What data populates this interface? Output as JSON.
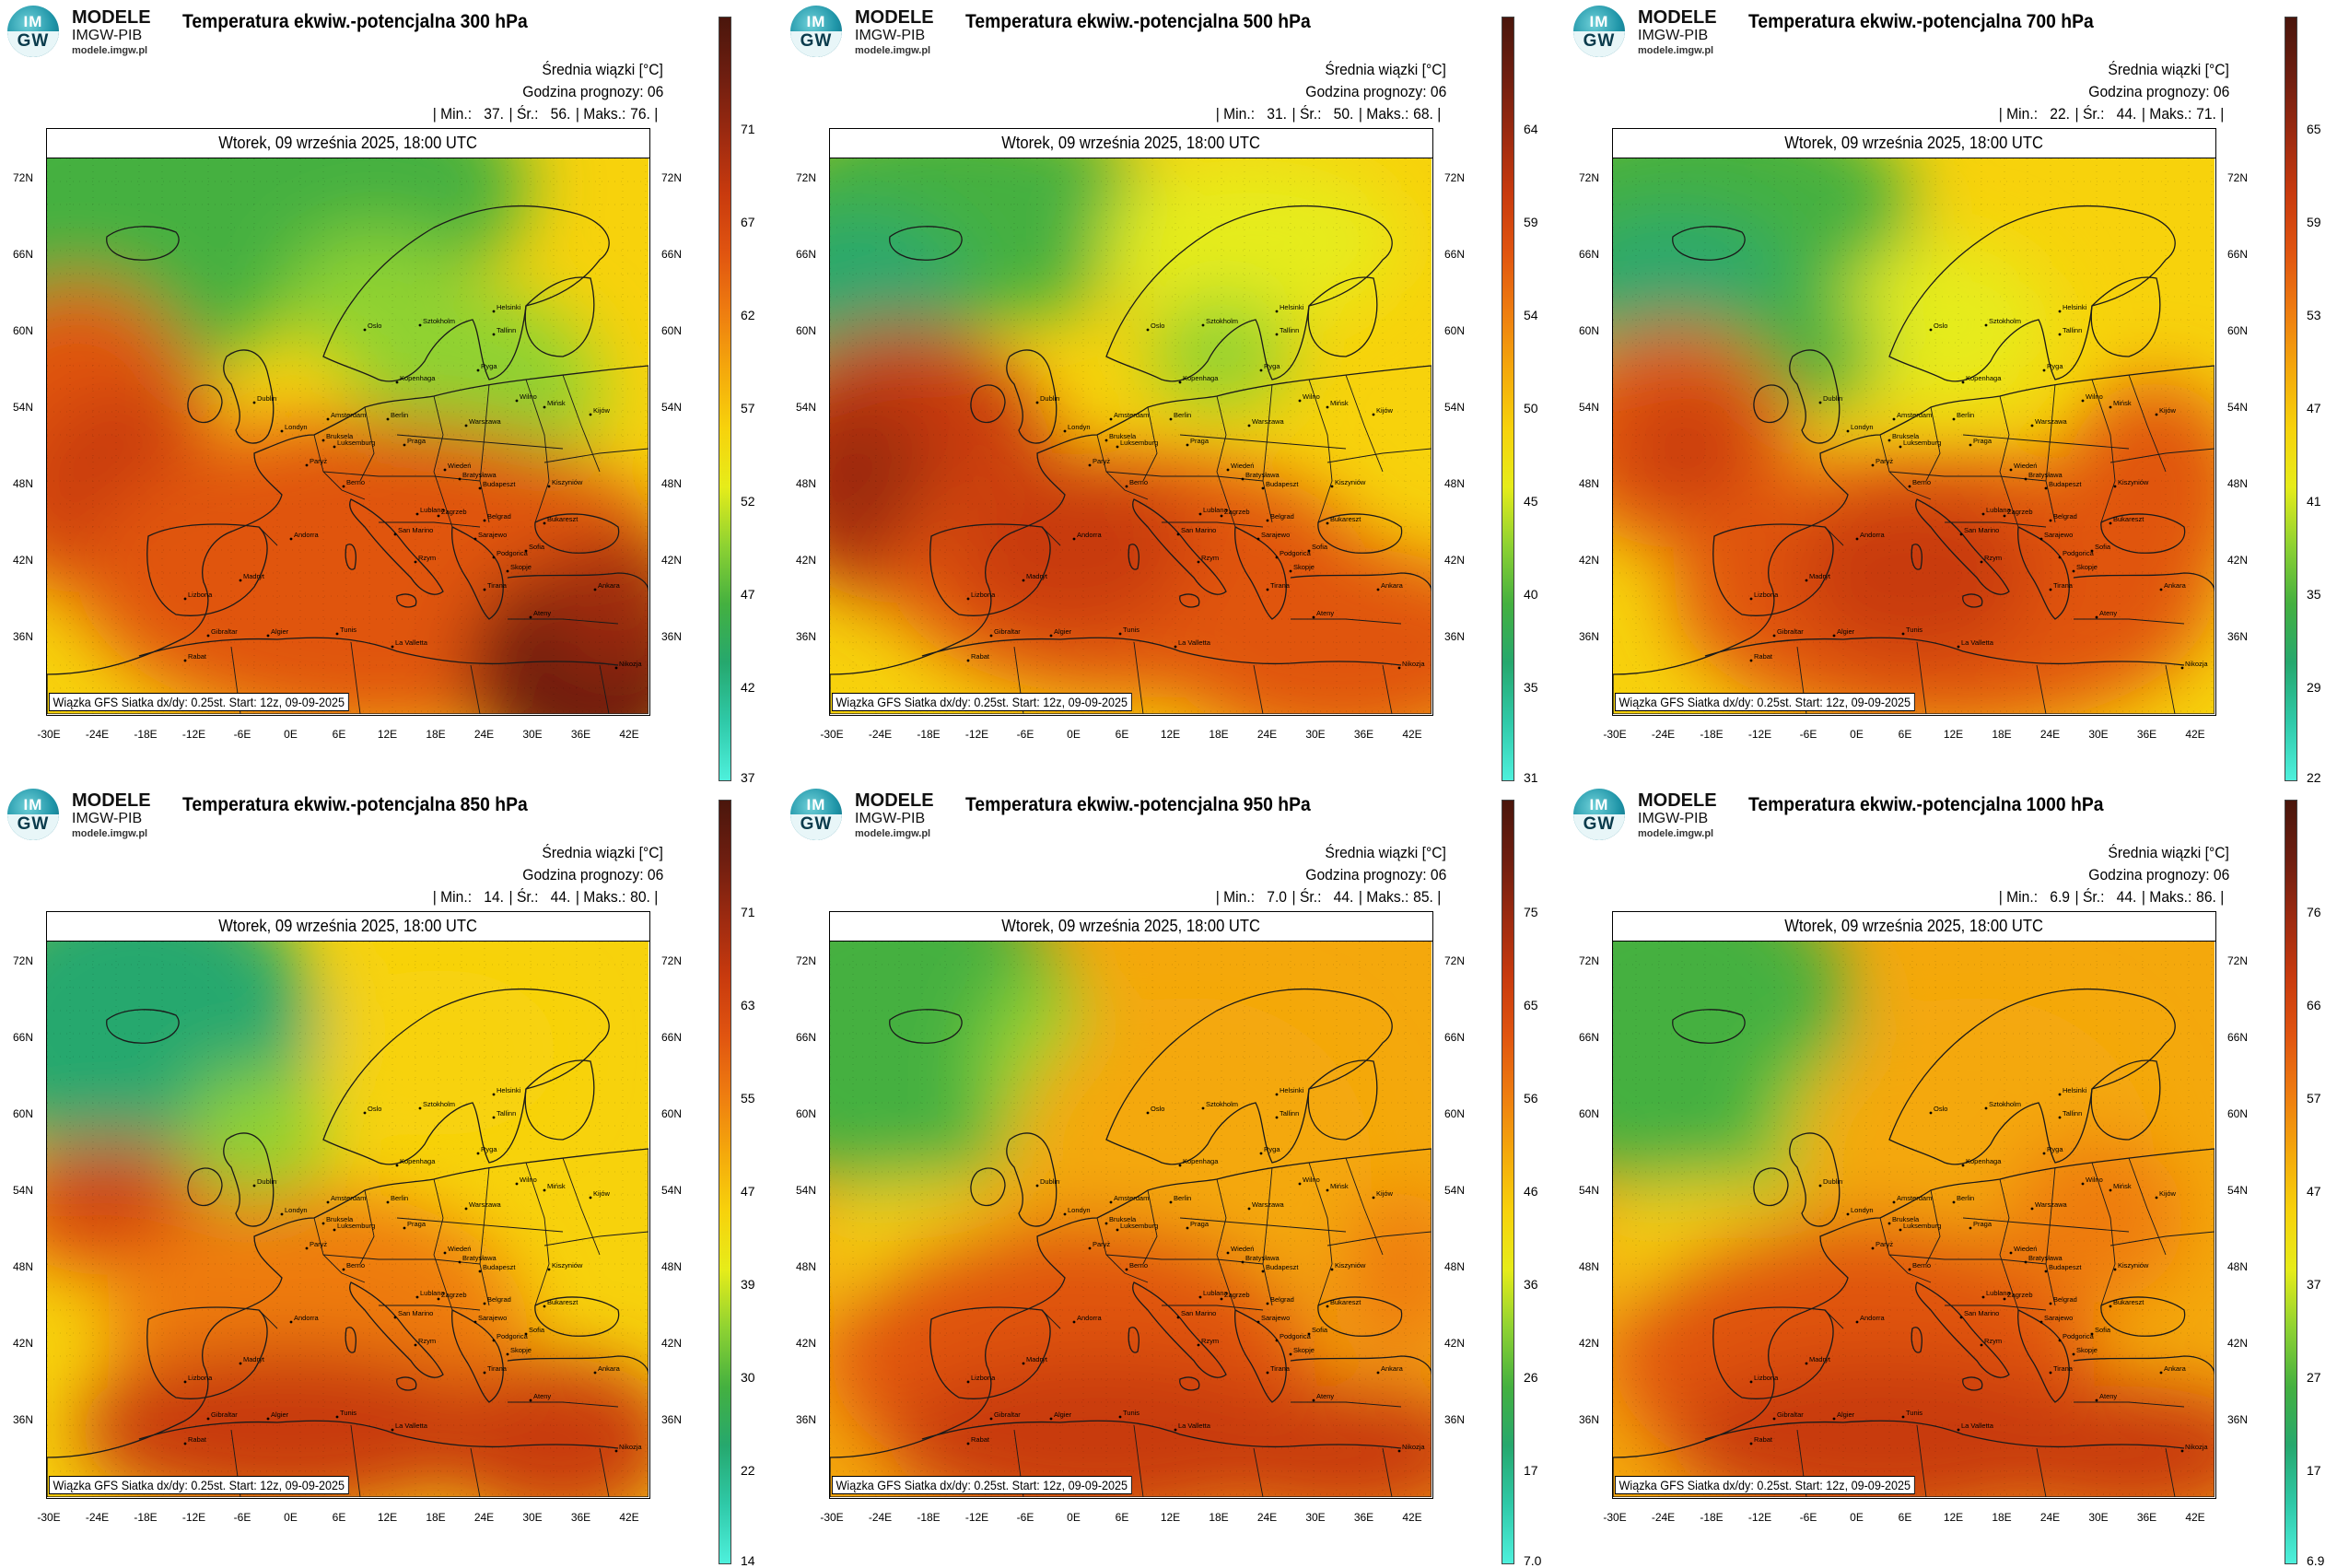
{
  "logo": {
    "top": "MODELE",
    "org": "IMGW-PIB",
    "url": "modele.imgw.pl",
    "badge_top": "IM",
    "badge_bottom": "GW",
    "colors": [
      "#1f95a8",
      "#0d5e74"
    ]
  },
  "common": {
    "subtitle": "Średnia wiązki [°C]",
    "forecast_hour": "Godzina prognozy: 06",
    "date": "Wtorek, 09 września 2025, 18:00 UTC",
    "caption": "Wiązka GFS Siatka dx/dy: 0.25st. Start: 12z, 09-09-2025",
    "min_label": "| Min.:",
    "mean_label": "| Śr.:",
    "max_label": "| Maks.:",
    "lat_labels": [
      "72N",
      "66N",
      "60N",
      "54N",
      "48N",
      "42N",
      "36N"
    ],
    "lon_labels": [
      "-30E",
      "-24E",
      "-18E",
      "-12E",
      "-6E",
      "0E",
      "6E",
      "12E",
      "18E",
      "24E",
      "30E",
      "36E",
      "42E"
    ],
    "cities": [
      "Oslo",
      "Sztokholm",
      "Helsinki",
      "Tallinn",
      "Ryga",
      "Kopenhaga",
      "Wilno",
      "Mińsk",
      "Dublin",
      "Londyn",
      "Amsterdam",
      "Berlin",
      "Warszawa",
      "Kijów",
      "Bruksela",
      "Luksemburg",
      "Paryż",
      "Praga",
      "Wiedeń",
      "Bratysława",
      "Budapeszt",
      "Berno",
      "Kiszyniów",
      "Lublana",
      "Zagrzeb",
      "Bukareszt",
      "Belgrad",
      "Sarajewo",
      "San Marino",
      "Podgorica",
      "Sofia",
      "Andorra",
      "Rzym",
      "Skopje",
      "Tirana",
      "Madryt",
      "Lizbona",
      "Ankara",
      "Ateny",
      "Gibraltar",
      "Algier",
      "Tunis",
      "La Valletta",
      "Rabat",
      "Nikozja"
    ]
  },
  "panels": [
    {
      "title": "Temperatura ekwiw.-potencjalna 300 hPa",
      "min": "37.",
      "mean": "56.",
      "max": "76.",
      "colorbar": [
        "71",
        "67",
        "62",
        "57",
        "52",
        "47",
        "42",
        "37"
      ]
    },
    {
      "title": "Temperatura ekwiw.-potencjalna 500 hPa",
      "min": "31.",
      "mean": "50.",
      "max": "68.",
      "colorbar": [
        "64",
        "59",
        "54",
        "50",
        "45",
        "40",
        "35",
        "31"
      ]
    },
    {
      "title": "Temperatura ekwiw.-potencjalna 700 hPa",
      "min": "22.",
      "mean": "44.",
      "max": "71.",
      "colorbar": [
        "65",
        "59",
        "53",
        "47",
        "41",
        "35",
        "29",
        "22"
      ]
    },
    {
      "title": "Temperatura ekwiw.-potencjalna 850 hPa",
      "min": "14.",
      "mean": "44.",
      "max": "80.",
      "colorbar": [
        "71",
        "63",
        "55",
        "47",
        "39",
        "30",
        "22",
        "14"
      ]
    },
    {
      "title": "Temperatura ekwiw.-potencjalna 950 hPa",
      "min": "7.0",
      "mean": "44.",
      "max": "85.",
      "colorbar": [
        "75",
        "65",
        "56",
        "46",
        "36",
        "26",
        "17",
        "7.0"
      ]
    },
    {
      "title": "Temperatura ekwiw.-potencjalna 1000 hPa",
      "min": "6.9",
      "mean": "44.",
      "max": "86.",
      "colorbar": [
        "76",
        "66",
        "57",
        "47",
        "37",
        "27",
        "17",
        "6.9"
      ]
    }
  ],
  "palette": [
    "#4ef0dc",
    "#2fc9a8",
    "#26a86e",
    "#44b040",
    "#8ed232",
    "#e6ec1a",
    "#f7d20c",
    "#f4a80c",
    "#ee7c10",
    "#e05410",
    "#c83a0e",
    "#9c2a10",
    "#6e1e10",
    "#4a160c"
  ]
}
